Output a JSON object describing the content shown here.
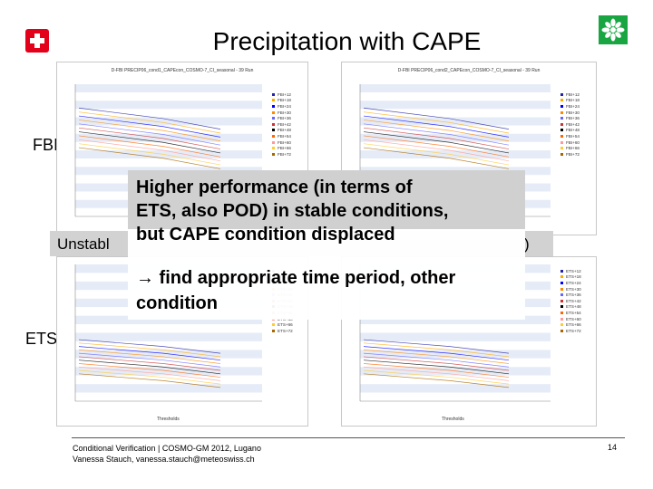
{
  "title": "Precipitation with CAPE",
  "logos": {
    "left": "swiss-cross-icon",
    "right": "cosmo-flower-icon"
  },
  "rows": {
    "top_label": "FBI",
    "bottom_label": "ETS"
  },
  "charts": {
    "top_left": {
      "title_line1": "D-FBI PRECIP06_cond1_CAPEcon_COSMO-7_CI_seasonal - 39 Run"
    },
    "top_right": {
      "title_line1": "D-FBI PRECIP06_cond2_CAPEcon_COSMO-7_CI_seasonal - 39 Run"
    },
    "x_label": "Thresholds"
  },
  "legend": {
    "fbi": [
      "FBI+12",
      "FBI+18",
      "FBI+24",
      "FBI+30",
      "FBI+36",
      "FBI+42",
      "FBI+48",
      "FBI+54",
      "FBI+60",
      "FBI+66",
      "FBI+72"
    ],
    "ets": [
      "ETS+12",
      "ETS+18",
      "ETS+24",
      "ETS+30",
      "ETS+36",
      "ETS+42",
      "ETS+48",
      "ETS+54",
      "ETS+60",
      "ETS+66",
      "ETS+72"
    ],
    "colors": [
      "#2222aa",
      "#ffaa00",
      "#0000ff",
      "#ff8800",
      "#6666ff",
      "#cc3333",
      "#000000",
      "#ff6600",
      "#ff9999",
      "#ffcc33",
      "#aa6600"
    ]
  },
  "overlay": {
    "line1": "Higher performance (in terms of",
    "line2": "ETS, also POD) in stable conditions,",
    "line3": "but CAPE condition displaced",
    "line4": "→ find appropriate time period, other",
    "line5": "condition"
  },
  "band": {
    "left": "Unstabl",
    "right": ")"
  },
  "footer": {
    "line1": "Conditional Verification | COSMO-GM 2012, Lugano",
    "line2": "Vanessa Stauch, vanessa.stauch@meteoswiss.ch",
    "page": "14"
  }
}
